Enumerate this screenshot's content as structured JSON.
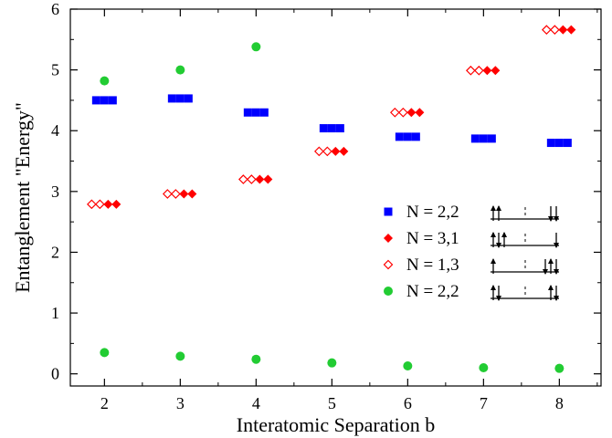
{
  "chart_data": {
    "type": "scatter",
    "xlabel": "Interatomic Separation b",
    "ylabel": "Entanglement \"Energy\"",
    "xlim": [
      1.55,
      8.55
    ],
    "ylim": [
      -0.2,
      6
    ],
    "xticks": [
      2,
      3,
      4,
      5,
      6,
      7,
      8
    ],
    "yticks": [
      0,
      1,
      2,
      3,
      4,
      5,
      6
    ],
    "grid": false,
    "legend_position": "center-right",
    "series": [
      {
        "name": "N = 2,2",
        "marker": "square",
        "color": "#0000ff",
        "points": [
          {
            "x": 2,
            "y": [
              4.5,
              4.5,
              4.5
            ]
          },
          {
            "x": 3,
            "y": [
              4.53,
              4.53,
              4.53
            ]
          },
          {
            "x": 4,
            "y": [
              4.3,
              4.3,
              4.3
            ]
          },
          {
            "x": 5,
            "y": [
              4.04,
              4.04,
              4.04
            ]
          },
          {
            "x": 6,
            "y": [
              3.9,
              3.9,
              3.9
            ]
          },
          {
            "x": 7,
            "y": [
              3.87,
              3.87,
              3.87
            ]
          },
          {
            "x": 8,
            "y": [
              3.8,
              3.8,
              3.8
            ]
          }
        ]
      },
      {
        "name": "N = 3,1",
        "marker": "diamond-filled",
        "color": "#ff0000",
        "points": [
          {
            "x": 2,
            "y": [
              2.79,
              2.79
            ]
          },
          {
            "x": 3,
            "y": [
              2.96,
              2.96
            ]
          },
          {
            "x": 4,
            "y": [
              3.2,
              3.2
            ]
          },
          {
            "x": 5,
            "y": [
              3.66,
              3.66
            ]
          },
          {
            "x": 6,
            "y": [
              4.3,
              4.3
            ]
          },
          {
            "x": 7,
            "y": [
              4.99,
              4.99
            ]
          },
          {
            "x": 8,
            "y": [
              5.66,
              5.66
            ]
          }
        ]
      },
      {
        "name": "N = 1,3",
        "marker": "diamond-open",
        "color": "#ff0000",
        "points": [
          {
            "x": 2,
            "y": [
              2.79,
              2.79
            ]
          },
          {
            "x": 3,
            "y": [
              2.96,
              2.96
            ]
          },
          {
            "x": 4,
            "y": [
              3.2,
              3.2
            ]
          },
          {
            "x": 5,
            "y": [
              3.66,
              3.66
            ]
          },
          {
            "x": 6,
            "y": [
              4.3,
              4.3
            ]
          },
          {
            "x": 7,
            "y": [
              4.99,
              4.99
            ]
          },
          {
            "x": 8,
            "y": [
              5.66,
              5.66
            ]
          }
        ]
      },
      {
        "name": "N = 2,2",
        "marker": "circle",
        "color": "#22cc33",
        "points": [
          {
            "x": 2,
            "y": [
              4.82,
              0.35
            ]
          },
          {
            "x": 3,
            "y": [
              5.0,
              0.29
            ]
          },
          {
            "x": 4,
            "y": [
              5.38,
              0.24
            ]
          },
          {
            "x": 5,
            "y": [
              0.18
            ]
          },
          {
            "x": 6,
            "y": [
              0.13
            ]
          },
          {
            "x": 7,
            "y": [
              0.1
            ]
          },
          {
            "x": 8,
            "y": [
              0.09
            ]
          }
        ]
      }
    ],
    "legend_spin_diagrams": [
      {
        "left": [
          "up",
          "up"
        ],
        "right": [
          "down",
          "down"
        ]
      },
      {
        "left": [
          "up",
          "down",
          "up"
        ],
        "right": [
          "down"
        ]
      },
      {
        "left": [
          "up"
        ],
        "right": [
          "down",
          "up",
          "down"
        ]
      },
      {
        "left": [
          "up",
          "down"
        ],
        "right": [
          "up",
          "down"
        ]
      }
    ]
  }
}
